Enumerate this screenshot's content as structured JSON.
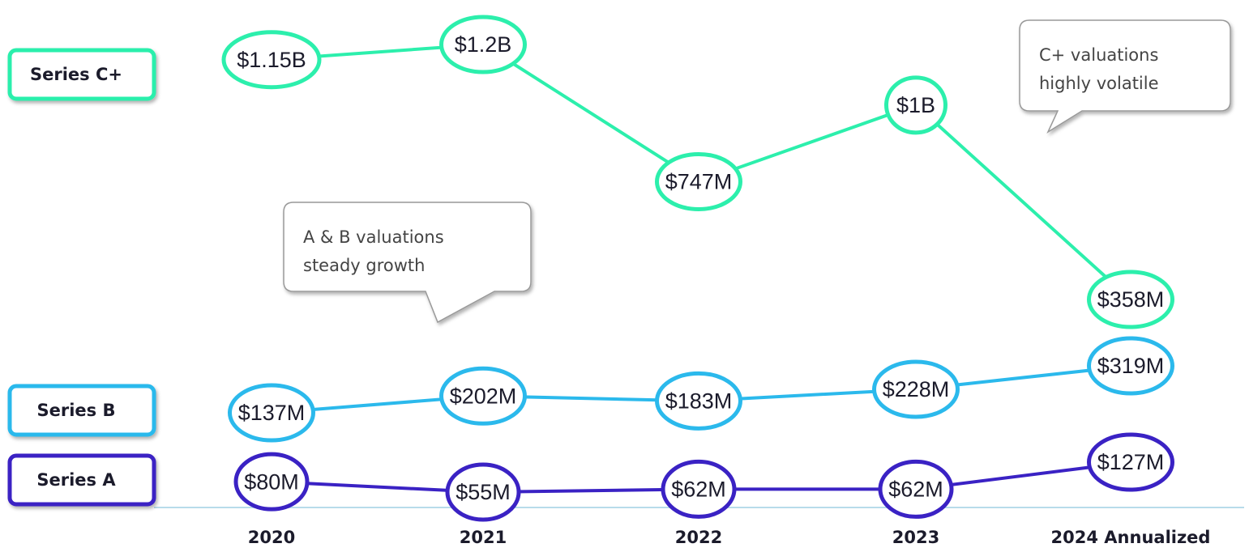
{
  "chart_data": {
    "type": "line",
    "categories": [
      "2020",
      "2021",
      "2022",
      "2023",
      "2024 Annualized"
    ],
    "series": [
      {
        "name": "Series C+",
        "color": "#2cefac",
        "values": [
          1150,
          1200,
          747,
          1000,
          358
        ],
        "value_labels": [
          "$1.15B",
          "$1.2B",
          "$747M",
          "$1B",
          "$358M"
        ]
      },
      {
        "name": "Series B",
        "color": "#2bb9ec",
        "values": [
          137,
          202,
          183,
          228,
          319
        ],
        "value_labels": [
          "$137M",
          "$202M",
          "$183M",
          "$228M",
          "$319M"
        ]
      },
      {
        "name": "Series A",
        "color": "#3a22c4",
        "values": [
          80,
          55,
          62,
          62,
          127
        ],
        "value_labels": [
          "$80M",
          "$55M",
          "$62M",
          "$62M",
          "$127M"
        ]
      }
    ],
    "annotations": [
      {
        "lines": [
          "C+ valuations",
          "highly volatile"
        ]
      },
      {
        "lines": [
          "A & B valuations",
          "steady growth"
        ]
      }
    ]
  }
}
